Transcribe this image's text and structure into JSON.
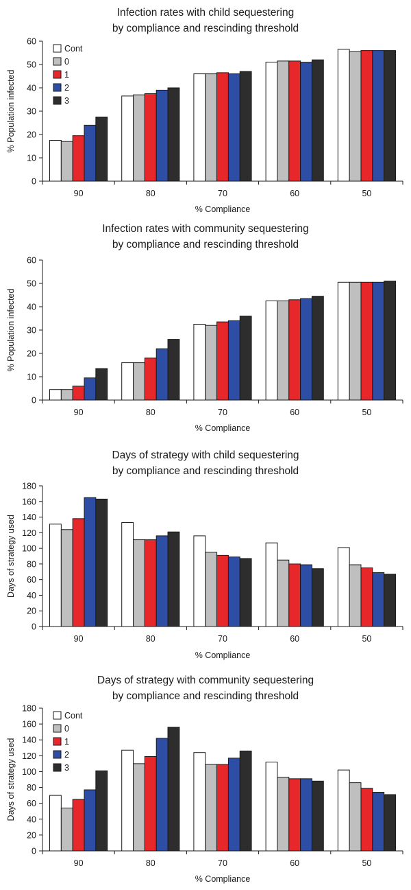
{
  "chart_data": [
    {
      "type": "bar",
      "title_lines": [
        "Infection rates with child sequestering",
        "by compliance and rescinding threshold"
      ],
      "xlabel": "% Compliance",
      "ylabel": "% Population infected",
      "ylim": [
        0,
        60
      ],
      "yticks": [
        0,
        10,
        20,
        30,
        40,
        50,
        60
      ],
      "categories": [
        "90",
        "80",
        "70",
        "60",
        "50"
      ],
      "legend": "top-left",
      "series": [
        {
          "name": "Cont",
          "color": "#ffffff",
          "values": [
            17.5,
            36.5,
            46,
            51,
            56.5
          ]
        },
        {
          "name": "0",
          "color": "#bfbfbf",
          "values": [
            17,
            37,
            46,
            51.5,
            55.5
          ]
        },
        {
          "name": "1",
          "color": "#e8272b",
          "values": [
            19.5,
            37.5,
            46.5,
            51.5,
            56
          ]
        },
        {
          "name": "2",
          "color": "#2e4ea6",
          "values": [
            24,
            39,
            46,
            51,
            56
          ]
        },
        {
          "name": "3",
          "color": "#2d2d2d",
          "values": [
            27.5,
            40,
            47,
            52,
            56
          ]
        }
      ]
    },
    {
      "type": "bar",
      "title_lines": [
        "Infection rates with community sequestering",
        "by compliance and rescinding threshold"
      ],
      "xlabel": "% Compliance",
      "ylabel": "% Population infected",
      "ylim": [
        0,
        60
      ],
      "yticks": [
        0,
        10,
        20,
        30,
        40,
        50,
        60
      ],
      "categories": [
        "90",
        "80",
        "70",
        "60",
        "50"
      ],
      "legend": "none",
      "series": [
        {
          "name": "Cont",
          "color": "#ffffff",
          "values": [
            4.5,
            16,
            32.5,
            42.5,
            50.5
          ]
        },
        {
          "name": "0",
          "color": "#bfbfbf",
          "values": [
            4.5,
            16,
            32,
            42.5,
            50.5
          ]
        },
        {
          "name": "1",
          "color": "#e8272b",
          "values": [
            6,
            18,
            33.5,
            43,
            50.5
          ]
        },
        {
          "name": "2",
          "color": "#2e4ea6",
          "values": [
            9.5,
            22,
            34,
            43.5,
            50.5
          ]
        },
        {
          "name": "3",
          "color": "#2d2d2d",
          "values": [
            13.5,
            26,
            36,
            44.5,
            51
          ]
        }
      ]
    },
    {
      "type": "bar",
      "title_lines": [
        "Days of strategy with child sequestering",
        "by compliance and rescinding threshold"
      ],
      "xlabel": "% Compliance",
      "ylabel": "Days of strategy used",
      "ylim": [
        0,
        180
      ],
      "yticks": [
        0,
        20,
        40,
        60,
        80,
        100,
        120,
        140,
        160,
        180
      ],
      "categories": [
        "90",
        "80",
        "70",
        "60",
        "50"
      ],
      "legend": "none",
      "series": [
        {
          "name": "Cont",
          "color": "#ffffff",
          "values": [
            131,
            133,
            116,
            107,
            101
          ]
        },
        {
          "name": "0",
          "color": "#bfbfbf",
          "values": [
            124,
            111,
            95,
            85,
            79
          ]
        },
        {
          "name": "1",
          "color": "#e8272b",
          "values": [
            138,
            111,
            91,
            80,
            75
          ]
        },
        {
          "name": "2",
          "color": "#2e4ea6",
          "values": [
            165,
            116,
            89,
            79,
            69
          ]
        },
        {
          "name": "3",
          "color": "#2d2d2d",
          "values": [
            163,
            121,
            87,
            74,
            67
          ]
        }
      ]
    },
    {
      "type": "bar",
      "title_lines": [
        "Days of strategy with community sequestering",
        "by compliance and rescinding threshold"
      ],
      "xlabel": "% Compliance",
      "ylabel": "Days of strategy used",
      "ylim": [
        0,
        180
      ],
      "yticks": [
        0,
        20,
        40,
        60,
        80,
        100,
        120,
        140,
        160,
        180
      ],
      "categories": [
        "90",
        "80",
        "70",
        "60",
        "50"
      ],
      "legend": "top-left",
      "series": [
        {
          "name": "Cont",
          "color": "#ffffff",
          "values": [
            70,
            127,
            124,
            112,
            102
          ]
        },
        {
          "name": "0",
          "color": "#bfbfbf",
          "values": [
            54,
            110,
            109,
            93,
            86
          ]
        },
        {
          "name": "1",
          "color": "#e8272b",
          "values": [
            65,
            119,
            109,
            91,
            79
          ]
        },
        {
          "name": "2",
          "color": "#2e4ea6",
          "values": [
            77,
            142,
            117,
            91,
            74
          ]
        },
        {
          "name": "3",
          "color": "#2d2d2d",
          "values": [
            101,
            156,
            126,
            88,
            71
          ]
        }
      ]
    }
  ]
}
